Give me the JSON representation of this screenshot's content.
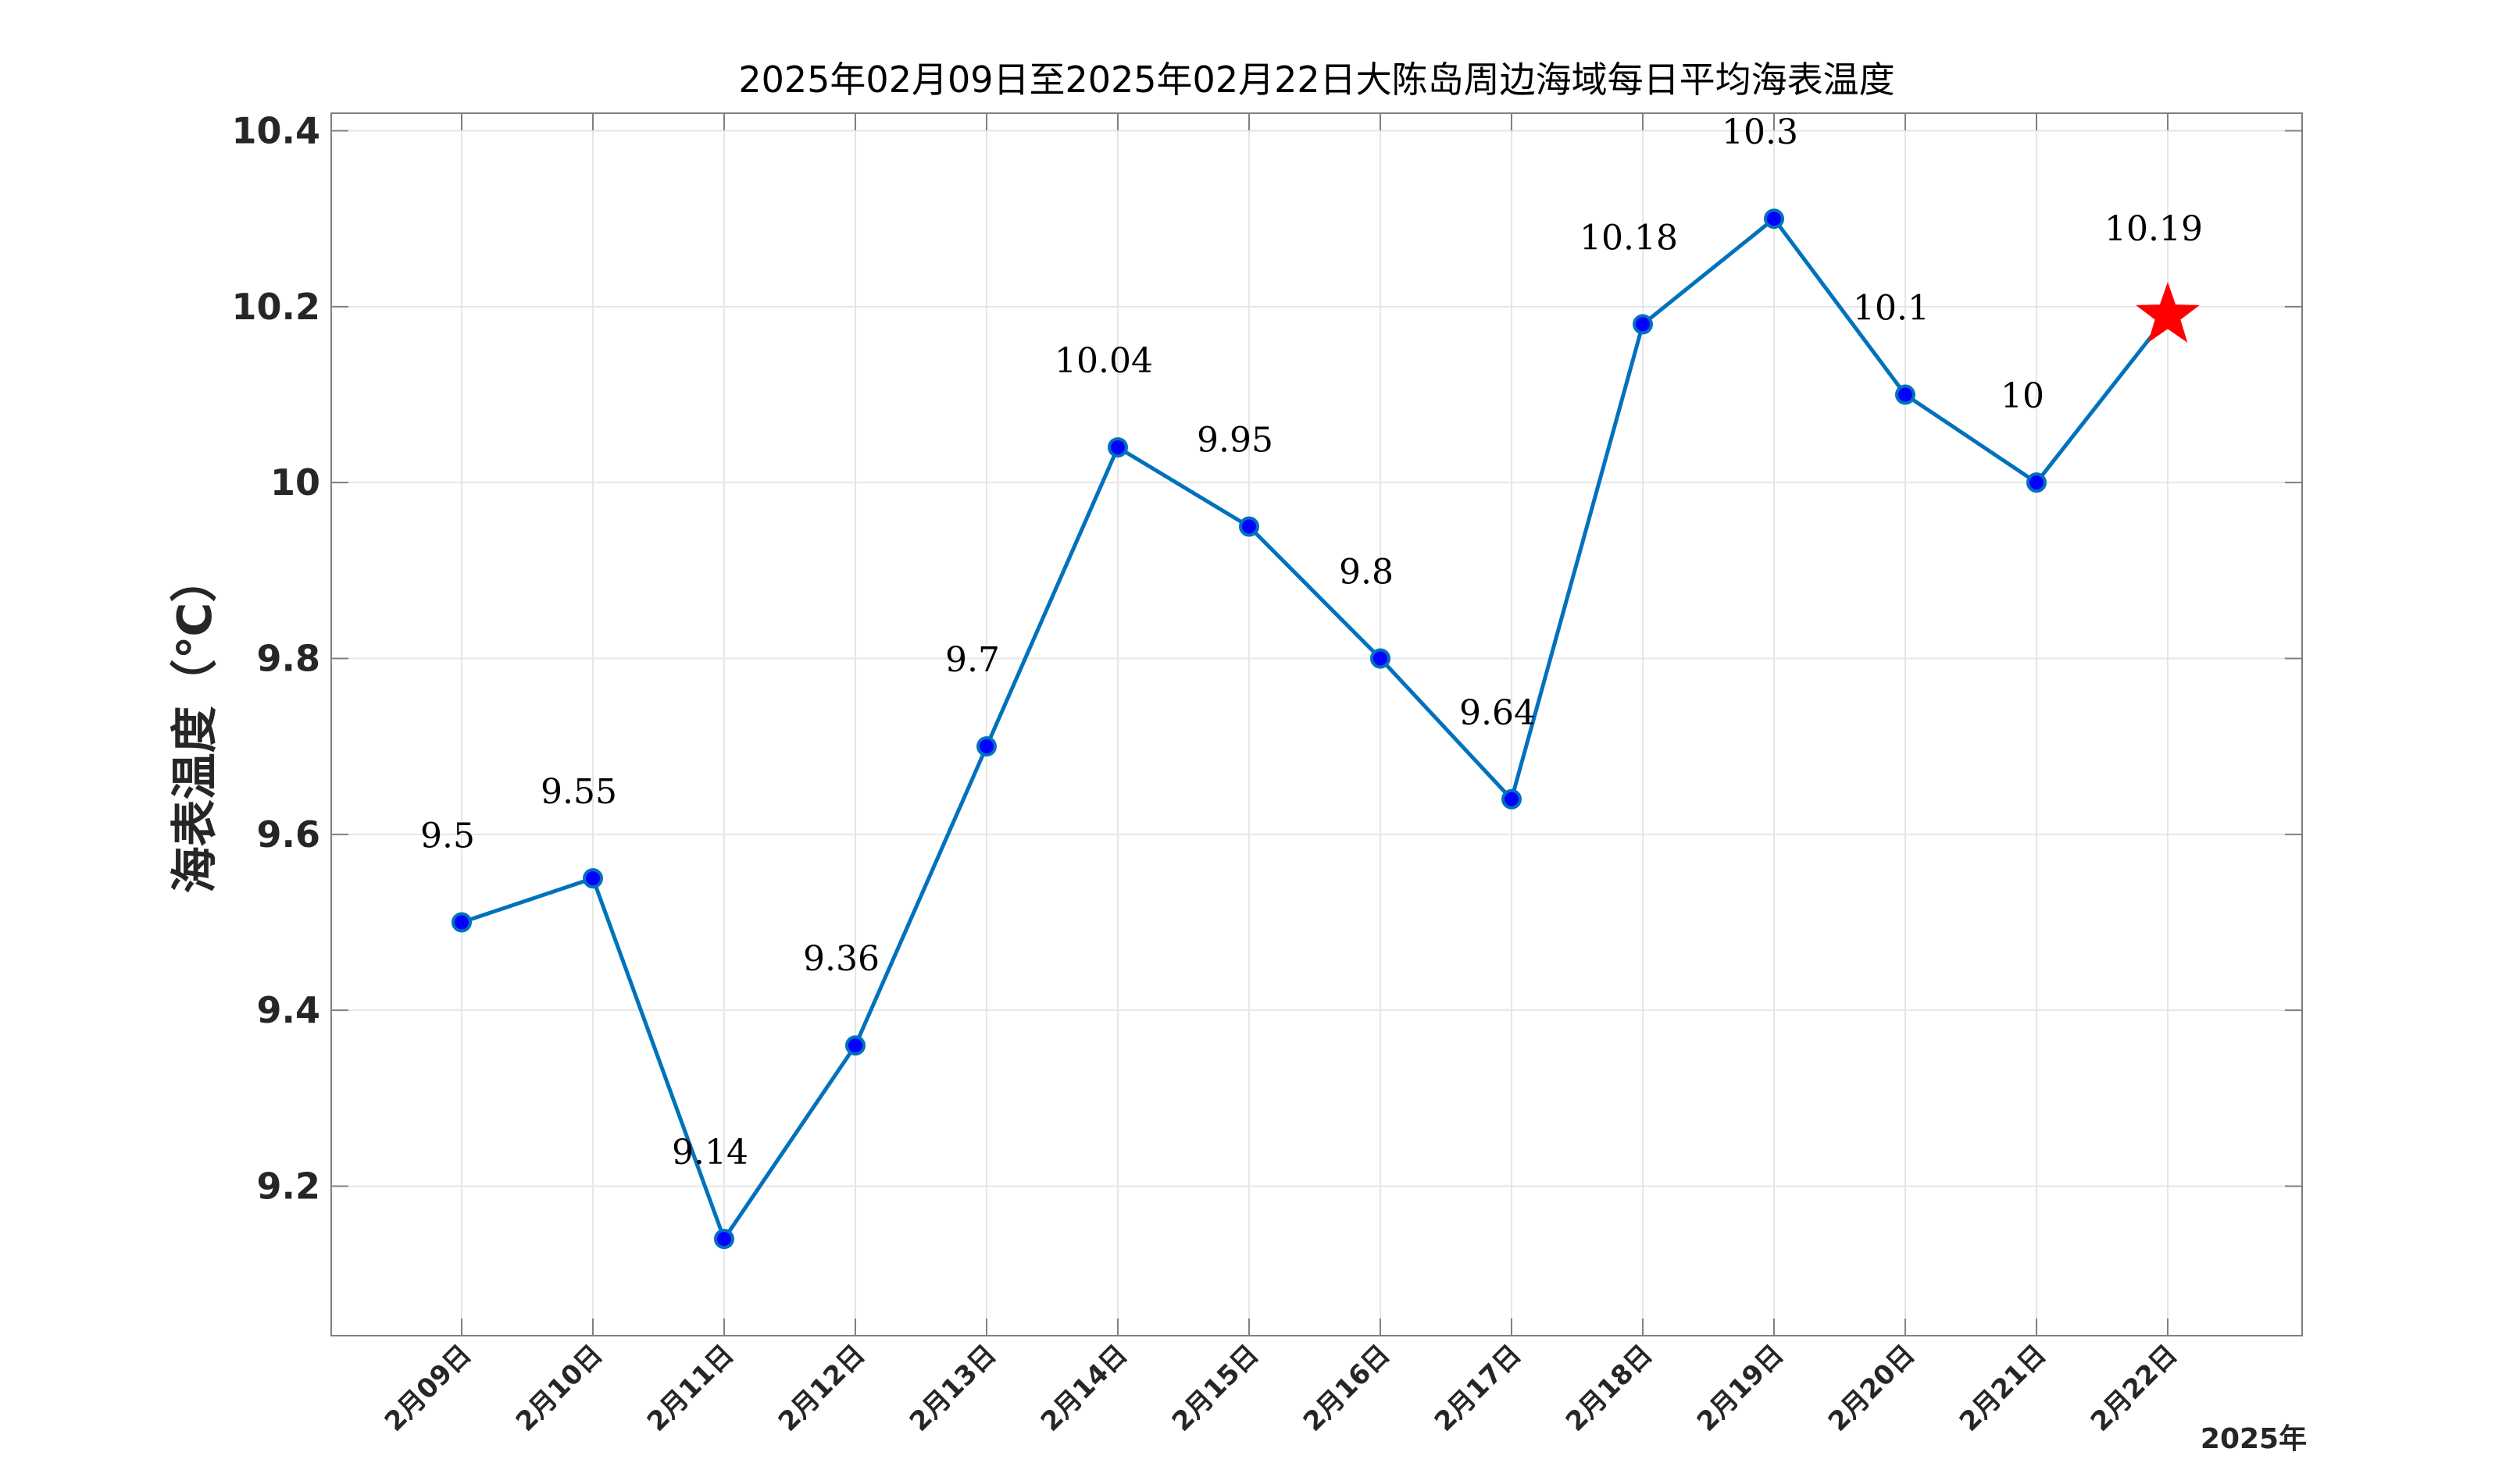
{
  "chart_data": {
    "type": "line",
    "title": "2025年02月09日至2025年02月22日大陈岛周边海域每日平均海表温度",
    "ylabel": "海表温度（℃）",
    "xlabel": "",
    "x_note": "2025年",
    "categories": [
      "2月09日",
      "2月10日",
      "2月11日",
      "2月12日",
      "2月13日",
      "2月14日",
      "2月15日",
      "2月16日",
      "2月17日",
      "2月18日",
      "2月19日",
      "2月20日",
      "2月21日",
      "2月22日"
    ],
    "values": [
      9.5,
      9.55,
      9.14,
      9.36,
      9.7,
      10.04,
      9.95,
      9.8,
      9.64,
      10.18,
      10.3,
      10.1,
      10,
      10.19
    ],
    "data_labels": [
      "9.5",
      "9.55",
      "9.14",
      "9.36",
      "9.7",
      "10.04",
      "9.95",
      "9.8",
      "9.64",
      "10.18",
      "10.3",
      "10.1",
      "10",
      "10.19"
    ],
    "yticks": [
      9.2,
      9.4,
      9.6,
      9.8,
      10,
      10.2,
      10.4
    ],
    "ytick_labels": [
      "9.2",
      "9.4",
      "9.6",
      "9.8",
      "10",
      "10.2",
      "10.4"
    ],
    "ylim": [
      9.03,
      10.42
    ],
    "grid": true,
    "highlight_last_point": "star",
    "colors": {
      "line": "#0072BD",
      "marker_fill": "#0000FF",
      "marker_edge": "#0072BD",
      "highlight": "#FF0000",
      "grid": "#E6E6E6",
      "axis": "#808080"
    }
  }
}
